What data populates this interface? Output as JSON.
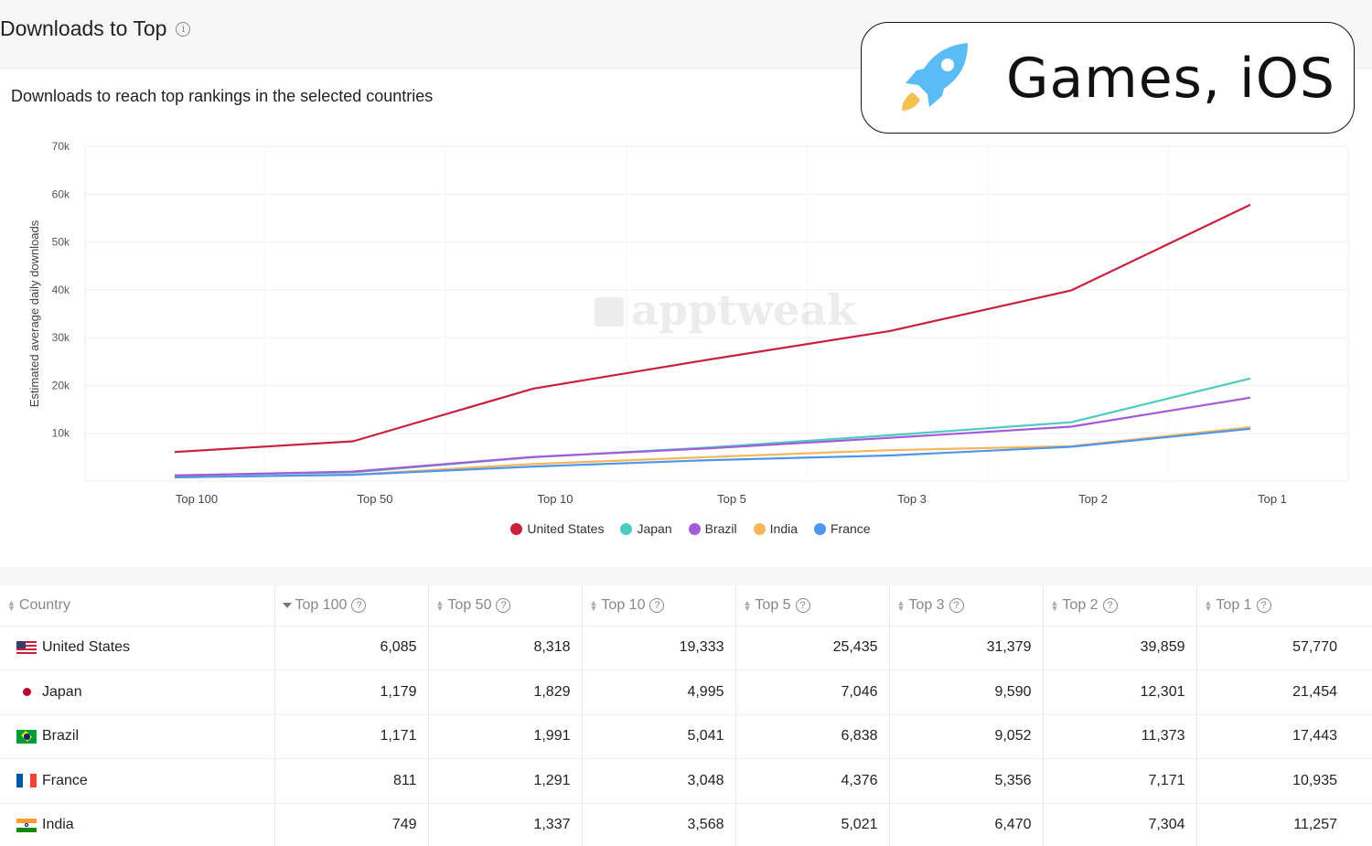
{
  "header": {
    "title": "Downloads to Top",
    "subtitle": "Downloads to reach top rankings in the selected countries"
  },
  "badge": {
    "label": "Games, iOS",
    "icon": "rocket-icon",
    "icon_color": "#5bbcf5",
    "flame_color": "#f2c14e"
  },
  "watermark": "apptweak",
  "chart_data": {
    "type": "line",
    "x": [
      "Top 100",
      "Top 50",
      "Top 10",
      "Top 5",
      "Top 3",
      "Top 2",
      "Top 1"
    ],
    "ylabel": "Estimated average daily downloads",
    "ylim": [
      0,
      70000
    ],
    "yticks": [
      10000,
      20000,
      30000,
      40000,
      50000,
      60000,
      70000
    ],
    "ytick_labels": [
      "10k",
      "20k",
      "30k",
      "40k",
      "50k",
      "60k",
      "70k"
    ],
    "grid": true,
    "legend_position": "bottom",
    "series": [
      {
        "name": "United States",
        "color": "#c8203d",
        "values": [
          6085,
          8318,
          19333,
          25435,
          31379,
          39859,
          57770
        ]
      },
      {
        "name": "Japan",
        "color": "#4ccbc1",
        "values": [
          1179,
          1829,
          4995,
          7046,
          9590,
          12301,
          21454
        ]
      },
      {
        "name": "Brazil",
        "color": "#a55ad9",
        "values": [
          1171,
          1991,
          5041,
          6838,
          9052,
          11373,
          17443
        ]
      },
      {
        "name": "India",
        "color": "#f6b65a",
        "values": [
          749,
          1337,
          3568,
          5021,
          6470,
          7304,
          11257
        ]
      },
      {
        "name": "France",
        "color": "#4d95ef",
        "values": [
          811,
          1291,
          3048,
          4376,
          5356,
          7171,
          10935
        ]
      }
    ]
  },
  "table": {
    "columns": [
      "Country",
      "Top 100",
      "Top 50",
      "Top 10",
      "Top 5",
      "Top 3",
      "Top 2",
      "Top 1"
    ],
    "rows": [
      {
        "country": "United States",
        "values": [
          "6,085",
          "8,318",
          "19,333",
          "25,435",
          "31,379",
          "39,859",
          "57,770"
        ]
      },
      {
        "country": "Japan",
        "values": [
          "1,179",
          "1,829",
          "4,995",
          "7,046",
          "9,590",
          "12,301",
          "21,454"
        ]
      },
      {
        "country": "Brazil",
        "values": [
          "1,171",
          "1,991",
          "5,041",
          "6,838",
          "9,052",
          "11,373",
          "17,443"
        ]
      },
      {
        "country": "France",
        "values": [
          "811",
          "1,291",
          "3,048",
          "4,376",
          "5,356",
          "7,171",
          "10,935"
        ]
      },
      {
        "country": "India",
        "values": [
          "749",
          "1,337",
          "3,568",
          "5,021",
          "6,470",
          "7,304",
          "11,257"
        ]
      }
    ]
  }
}
